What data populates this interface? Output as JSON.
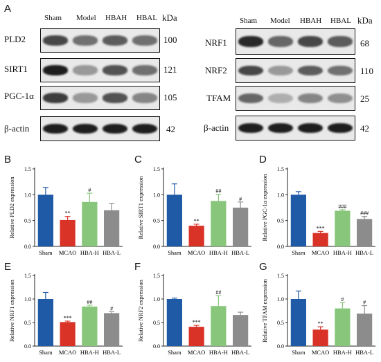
{
  "figure": {
    "panel_a_letter": "A",
    "kda_header": "kDa",
    "left_lanes": [
      "Sham",
      "Model",
      "HBAH",
      "HBAL"
    ],
    "right_lanes": [
      "Sham",
      "Model",
      "HBAH",
      "HBAL"
    ],
    "left_blots": [
      {
        "name": "PLD2",
        "kda": "100",
        "intensity": [
          0.75,
          0.55,
          0.65,
          0.55
        ]
      },
      {
        "name": "SIRT1",
        "kda": "121",
        "intensity": [
          0.95,
          0.35,
          0.7,
          0.55
        ]
      },
      {
        "name": "PGC-1α",
        "kda": "105",
        "intensity": [
          0.8,
          0.35,
          0.7,
          0.45
        ]
      },
      {
        "name": "β-actin",
        "kda": "42",
        "intensity": [
          0.95,
          0.95,
          0.95,
          0.95
        ]
      }
    ],
    "right_blots": [
      {
        "name": "NRF1",
        "kda": "68",
        "intensity": [
          0.9,
          0.6,
          0.75,
          0.65
        ]
      },
      {
        "name": "NRF2",
        "kda": "110",
        "intensity": [
          0.75,
          0.35,
          0.65,
          0.55
        ]
      },
      {
        "name": "TFAM",
        "kda": "25",
        "intensity": [
          0.6,
          0.25,
          0.45,
          0.4
        ]
      },
      {
        "name": "β-actin",
        "kda": "42",
        "intensity": [
          0.95,
          0.95,
          0.95,
          0.95
        ]
      }
    ]
  },
  "chart_data": [
    {
      "type": "bar",
      "panel": "B",
      "ylabel": "Relative PLD2 expression",
      "categories": [
        "Sham",
        "MCAO",
        "HBA-H",
        "HBA-L"
      ],
      "values": [
        1.0,
        0.51,
        0.86,
        0.7
      ],
      "errors": [
        0.14,
        0.07,
        0.17,
        0.13
      ],
      "significance": [
        "",
        "**",
        "#",
        ""
      ],
      "ylim": [
        0,
        1.5
      ],
      "yticks": [
        "0.0",
        "0.5",
        "1.0",
        "1.5"
      ],
      "colors": [
        "#1f5aa6",
        "#d93328",
        "#88c67b",
        "#8c8c8c"
      ]
    },
    {
      "type": "bar",
      "panel": "C",
      "ylabel": "Relative SIRT1 expression",
      "categories": [
        "Sham",
        "MCAO",
        "HBA-H",
        "HBA-L"
      ],
      "values": [
        1.0,
        0.4,
        0.88,
        0.75
      ],
      "errors": [
        0.21,
        0.03,
        0.13,
        0.11
      ],
      "significance": [
        "",
        "**",
        "##",
        "#"
      ],
      "ylim": [
        0,
        1.5
      ],
      "yticks": [
        "0.0",
        "0.5",
        "1.0",
        "1.5"
      ],
      "colors": [
        "#1f5aa6",
        "#d93328",
        "#88c67b",
        "#8c8c8c"
      ]
    },
    {
      "type": "bar",
      "panel": "D",
      "ylabel": "Relative PGC-1α expression",
      "categories": [
        "Sham",
        "MCAO",
        "HBA-H",
        "HBA-L"
      ],
      "values": [
        1.0,
        0.26,
        0.69,
        0.53
      ],
      "errors": [
        0.06,
        0.03,
        0.02,
        0.05
      ],
      "significance": [
        "",
        "***",
        "###",
        "###"
      ],
      "ylim": [
        0,
        1.5
      ],
      "yticks": [
        "0.0",
        "0.5",
        "1.0",
        "1.5"
      ],
      "colors": [
        "#1f5aa6",
        "#d93328",
        "#88c67b",
        "#8c8c8c"
      ]
    },
    {
      "type": "bar",
      "panel": "E",
      "ylabel": "Relative NRF1 expression",
      "categories": [
        "Sham",
        "MCAO",
        "HBA-H",
        "HBA-L"
      ],
      "values": [
        1.0,
        0.51,
        0.84,
        0.7
      ],
      "errors": [
        0.14,
        0.02,
        0.03,
        0.03
      ],
      "significance": [
        "",
        "***",
        "##",
        "#"
      ],
      "ylim": [
        0,
        1.5
      ],
      "yticks": [
        "0.0",
        "0.5",
        "1.0",
        "1.5"
      ],
      "colors": [
        "#1f5aa6",
        "#d93328",
        "#88c67b",
        "#8c8c8c"
      ]
    },
    {
      "type": "bar",
      "panel": "F",
      "ylabel": "Relative NRF2 expression",
      "categories": [
        "Sham",
        "MCAO",
        "HBA-H",
        "HBA-L"
      ],
      "values": [
        1.0,
        0.41,
        0.85,
        0.66
      ],
      "errors": [
        0.02,
        0.03,
        0.22,
        0.06
      ],
      "significance": [
        "",
        "***",
        "##",
        ""
      ],
      "ylim": [
        0,
        1.5
      ],
      "yticks": [
        "0.0",
        "0.5",
        "1.0",
        "1.5"
      ],
      "colors": [
        "#1f5aa6",
        "#d93328",
        "#88c67b",
        "#8c8c8c"
      ]
    },
    {
      "type": "bar",
      "panel": "G",
      "ylabel": "Relative TFAM expression",
      "categories": [
        "Sham",
        "MCAO",
        "HBA-H",
        "HBA-L"
      ],
      "values": [
        1.0,
        0.35,
        0.8,
        0.69
      ],
      "errors": [
        0.17,
        0.06,
        0.13,
        0.17
      ],
      "significance": [
        "",
        "**",
        "#",
        "#"
      ],
      "ylim": [
        0,
        1.5
      ],
      "yticks": [
        "0.0",
        "0.5",
        "1.0",
        "1.5"
      ],
      "colors": [
        "#1f5aa6",
        "#d93328",
        "#88c67b",
        "#8c8c8c"
      ]
    }
  ]
}
